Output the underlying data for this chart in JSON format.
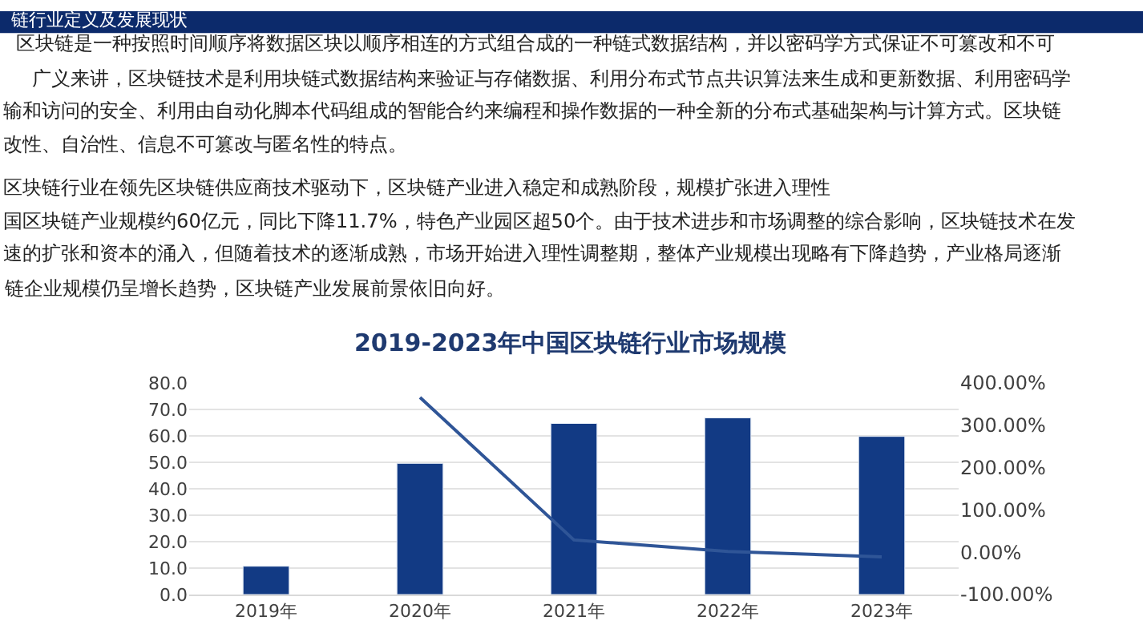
{
  "chart_data": {
    "type": "bar",
    "title": "2019-2023年中国区块链行业市场规模",
    "annotations": [
      "链行业定义及发展现状",
      "区块链是一种按照时间顺序将数据区块以顺序相连的方式组合成的一种链式数据结构，并以密码学方式保证不可篡改和不可",
      "广义来讲，区块链技术是利用块链式数据结构来验证与存储数据、利用分布式节点共识算法来生成和更新数据、利用密码学",
      "输和访问的安全、利用由自动化脚本代码组成的智能合约来编程和操作数据的一种全新的分布式基础架构与计算方式。区块链",
      "改性、自治性、信息不可篡改与匿名性的特点。",
      "区块链行业在领先区块链供应商技术驱动下，区块链产业进入稳定和成熟阶段，规模扩张进入理性",
      "国区块链产业规模约60亿元，同比下降11.7%，特色产业园区超50个。由于技术进步和市场调整的综合影响，区块链技术在发",
      "速的扩张和资本的涌入，但随着技术的逐渐成熟，市场开始进入理性调整期，整体产业规模出现略有下降趋势，产业格局逐渐",
      "链企业规模仍呈增长趋势，区块链产业发展前景依旧向好。"
    ],
    "categories": [
      "2019年",
      "2020年",
      "2021年",
      "2022年",
      "2023年"
    ],
    "series": [
      {
        "color": "#123a84",
        "values": [
          10.7,
          49.6,
          64.7,
          66.8,
          59.8
        ]
      },
      {
        "type": "line",
        "axis": "y2",
        "color": "#2f5597",
        "values": [
          null,
          366,
          29,
          2,
          -11
        ]
      }
    ],
    "ylim": [
      0,
      80
    ],
    "yticks": [
      {
        "value": 0,
        "label": "0.0"
      },
      {
        "value": 10,
        "label": "10.0"
      },
      {
        "value": 20,
        "label": "20.0"
      },
      {
        "value": 30,
        "label": "30.0"
      },
      {
        "value": 40,
        "label": "40.0"
      },
      {
        "value": 50,
        "label": "50.0"
      },
      {
        "value": 60,
        "label": "60.0"
      },
      {
        "value": 70,
        "label": "70.0"
      },
      {
        "value": 80,
        "label": "80.0"
      }
    ],
    "y2lim": [
      -100,
      400
    ],
    "y2ticks": [
      {
        "value": -100,
        "label": "-100.00%"
      },
      {
        "value": 0,
        "label": "0.00%"
      },
      {
        "value": 100,
        "label": "100.00%"
      },
      {
        "value": 200,
        "label": "200.00%"
      },
      {
        "value": 300,
        "label": "300.00%"
      },
      {
        "value": 400,
        "label": "400.00%"
      }
    ],
    "grid": "y",
    "legend": false,
    "marker": "none",
    "line_style": "solid"
  }
}
